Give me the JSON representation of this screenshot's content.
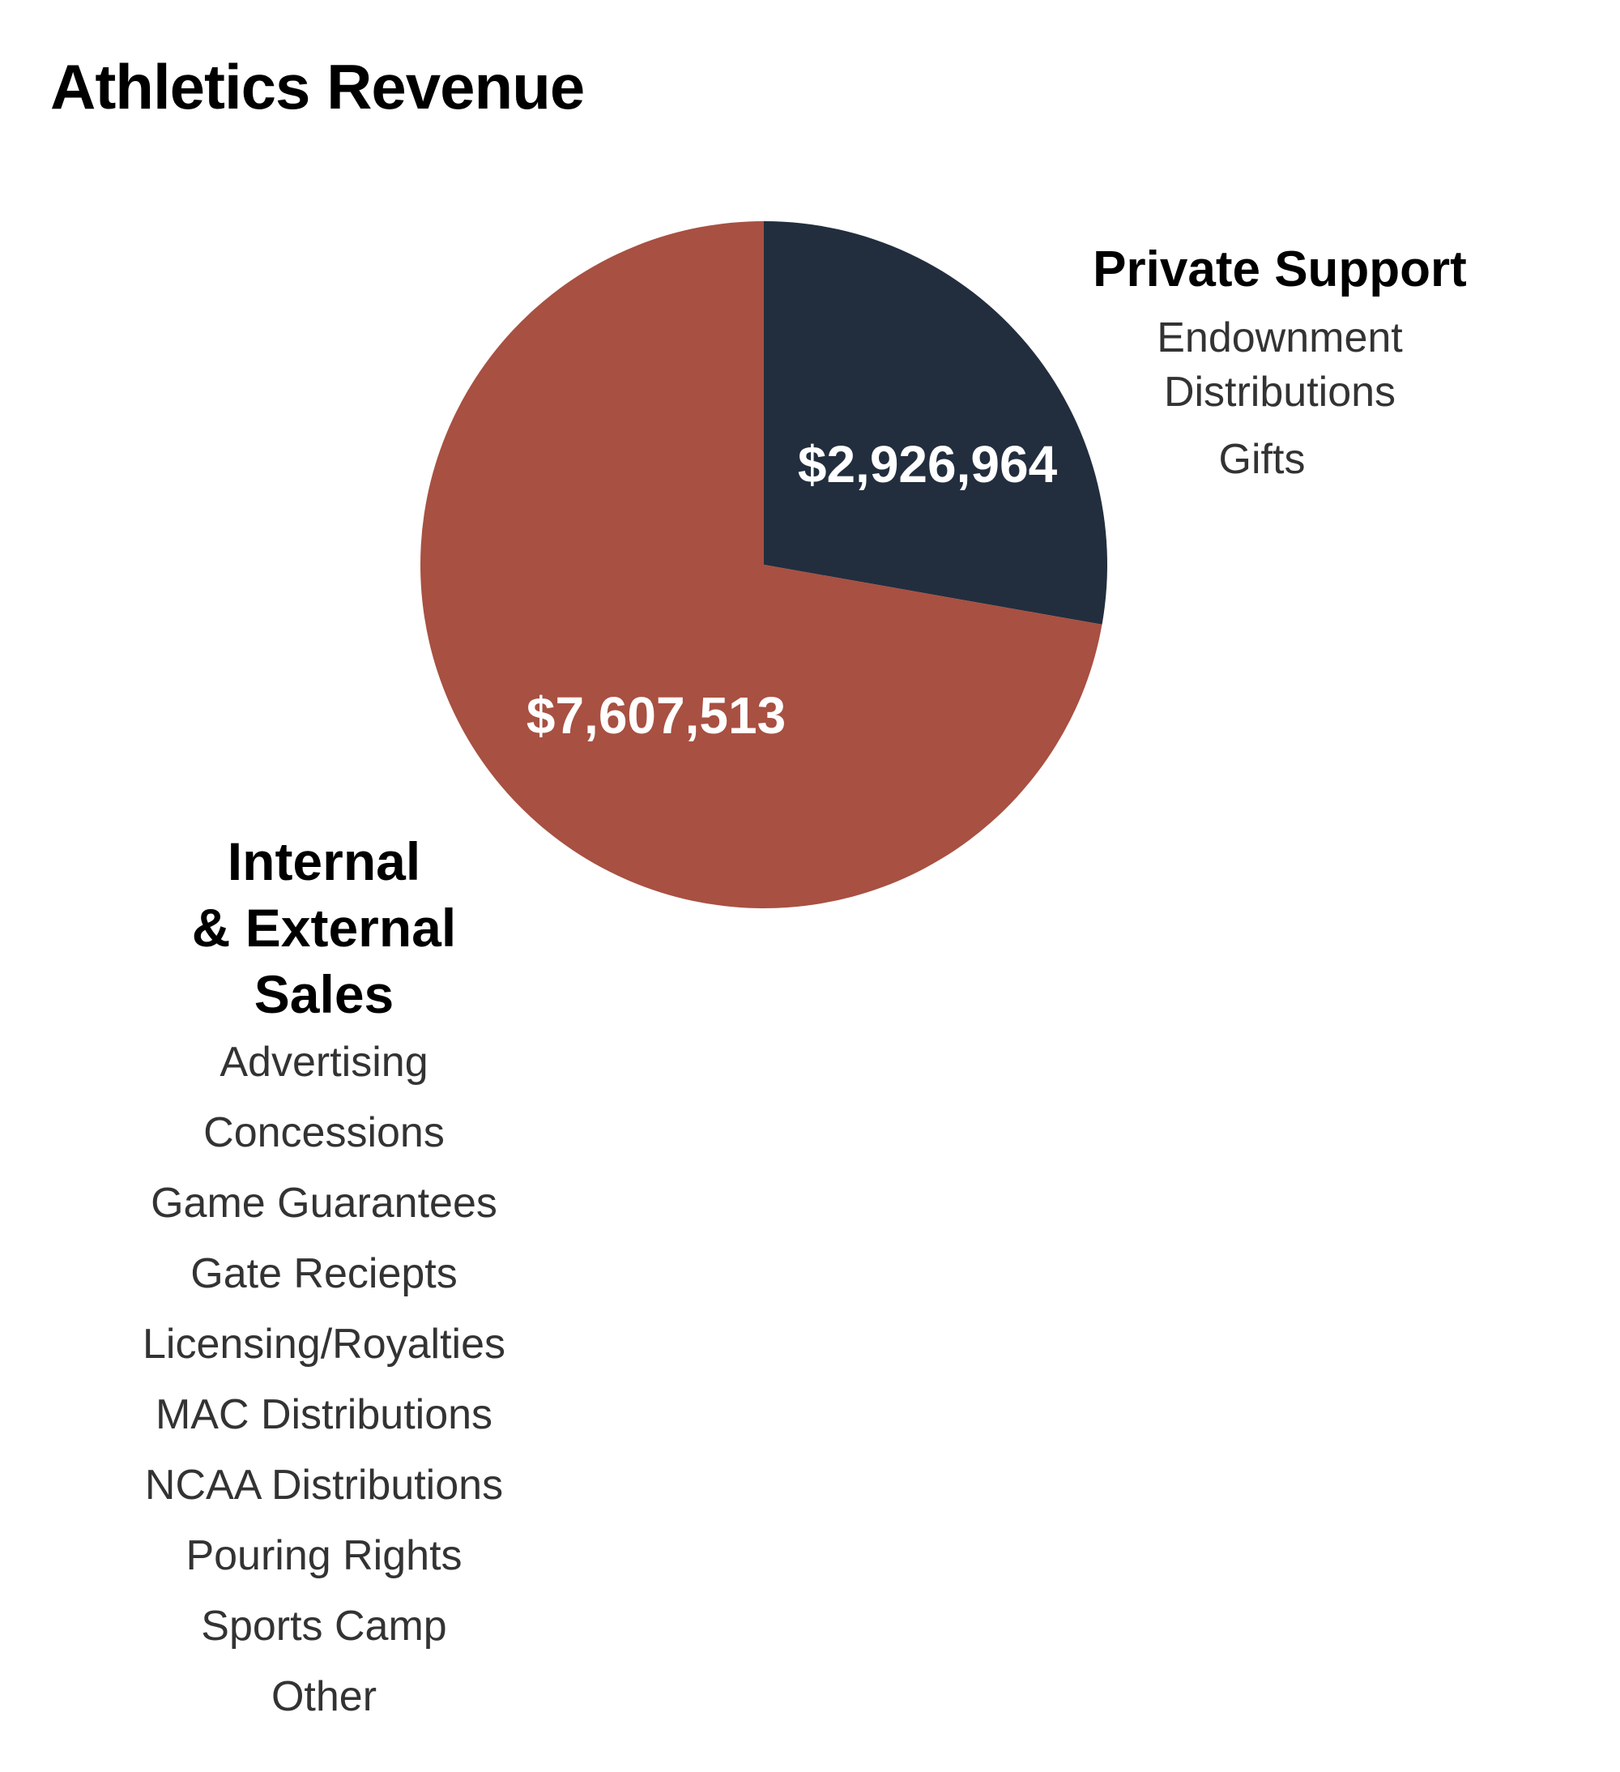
{
  "chart_data": {
    "type": "pie",
    "title": "Athletics Revenue",
    "slices": [
      {
        "name": "Private Support",
        "value": 2926964,
        "value_label": "$2,926,964",
        "color": "#222e3e",
        "items": [
          "Endownment",
          "Distributions",
          "Gifts"
        ]
      },
      {
        "name_lines": [
          "Internal",
          "& External",
          "Sales"
        ],
        "value": 7607513,
        "value_label": "$7,607,513",
        "color": "#a85042",
        "items": [
          "Advertising",
          "Concessions",
          "Game Guarantees",
          "Gate Reciepts",
          "Licensing/Royalties",
          "MAC Distributions",
          "NCAA Distributions",
          "Pouring Rights",
          "Sports Camp",
          "Other"
        ]
      }
    ],
    "start_angle": "12 o'clock",
    "direction": "clockwise",
    "legend": "beside slices"
  }
}
